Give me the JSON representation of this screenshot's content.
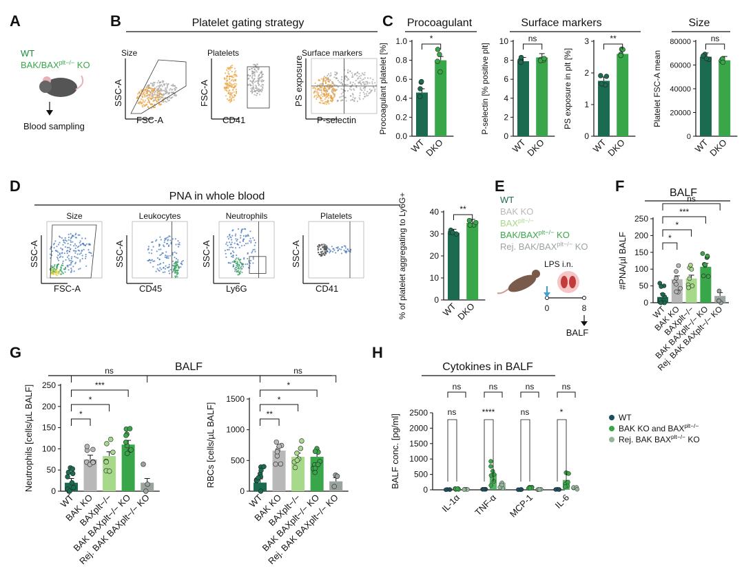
{
  "panel_letters": {
    "A": "A",
    "B": "B",
    "C": "C",
    "D": "D",
    "E": "E",
    "F": "F",
    "G": "G",
    "H": "H"
  },
  "panelA": {
    "wt": "WT",
    "ko_pre": "BAK/BAX",
    "ko_sup": "plt−/−",
    "ko_post": " KO",
    "sampling": "Blood sampling"
  },
  "panelB": {
    "title": "Platelet gating strategy",
    "plots": [
      {
        "label": "Size",
        "x": "FSC-A",
        "y": "SSC-A",
        "gate": "Size"
      },
      {
        "label": "Platelets",
        "x": "CD41",
        "y": "FSC-A",
        "gate": "CD41+"
      },
      {
        "label": "Surface markers",
        "x": "P-selectin",
        "y": "PS exposure",
        "gate": ""
      }
    ]
  },
  "panelC": {
    "titles": {
      "procoag": "Procoagulant",
      "surface": "Surface markers",
      "size": "Size"
    }
  },
  "panelD": {
    "title": "PNA in whole blood",
    "plots": [
      {
        "label": "Size",
        "x": "FSC-A",
        "y": "SSC-A"
      },
      {
        "label": "Leukocytes",
        "x": "CD45",
        "y": "SSC-A"
      },
      {
        "label": "Neutrophils",
        "x": "Ly6G",
        "y": "SSC-A"
      },
      {
        "label": "Platelets",
        "x": "CD41",
        "y": "SSC-A"
      }
    ]
  },
  "panelE": {
    "legend": [
      {
        "text": "WT",
        "sup": "",
        "post": "",
        "color": "#1a6b4f"
      },
      {
        "text": "BAK KO",
        "sup": "",
        "post": "",
        "color": "#b8b8b8"
      },
      {
        "text": "BAX",
        "sup": "plt−/−",
        "post": "",
        "color": "#a6d98a"
      },
      {
        "text": "BAK/BAX",
        "sup": "plt−/−",
        "post": " KO",
        "color": "#3aa64a"
      },
      {
        "text": "Rej. BAK/BAX",
        "sup": "plt−/−",
        "post": " KO",
        "color": "#9aa39e"
      }
    ],
    "lps": "LPS i.n.",
    "t0": "0",
    "t8": "8",
    "balf": "BALF"
  },
  "panelH": {
    "title": "Cytokines in BALF",
    "legend": [
      {
        "text": "WT",
        "sup": "",
        "post": "",
        "color": "#1d4d5c"
      },
      {
        "text": "BAK KO and BAX",
        "sup": "plt−/−",
        "post": "",
        "color": "#3aa64a"
      },
      {
        "text": "Rej. BAK BAX",
        "sup": "plt−/−",
        "post": " KO",
        "color": "#95b59b"
      }
    ]
  },
  "colors": {
    "wt": "#1a6b4f",
    "dko": "#3aa64a",
    "bak": "#b8b8b8",
    "bax": "#a6d98a",
    "rej": "#9aa39e",
    "orange": "#e8a03c",
    "gray": "#9c9c9c"
  },
  "chart_data": [
    {
      "id": "C1",
      "type": "bar",
      "title": "Procoagulant",
      "categories": [
        "WT",
        "DKO"
      ],
      "values": [
        0.46,
        0.8
      ],
      "ylabel": "Procoagulant platelet [%]",
      "ylim": [
        0,
        1.0
      ],
      "yticks": [
        "0.0",
        "0.2",
        "0.4",
        "0.6",
        "0.8",
        "1.0"
      ],
      "sig": "*"
    },
    {
      "id": "C2",
      "type": "bar",
      "categories": [
        "WT",
        "DKO"
      ],
      "values": [
        7.9,
        8.3
      ],
      "ylabel": "P-selectin [% positive plt]",
      "ylim": [
        0,
        10
      ],
      "yticks": [
        "0",
        "2",
        "4",
        "6",
        "8",
        "10"
      ],
      "sig": "ns"
    },
    {
      "id": "C3",
      "type": "bar",
      "categories": [
        "WT",
        "DKO"
      ],
      "values": [
        1.75,
        2.6
      ],
      "ylabel": "PS exposure in plt [%]",
      "ylim": [
        0,
        3
      ],
      "yticks": [
        "0",
        "1",
        "2",
        "3"
      ],
      "sig": "**"
    },
    {
      "id": "C4",
      "type": "bar",
      "title": "Size",
      "categories": [
        "WT",
        "DKO"
      ],
      "values": [
        67000,
        64000
      ],
      "ylabel": "Platelet FSC-A mean",
      "ylim": [
        0,
        80000
      ],
      "yticks": [
        "0",
        "20000",
        "40000",
        "60000",
        "80000"
      ],
      "sig": "ns"
    },
    {
      "id": "D5",
      "type": "bar",
      "categories": [
        "WT",
        "DKO"
      ],
      "values": [
        30.5,
        35
      ],
      "ylabel": "% of platelet aggregating to Ly6G+",
      "ylim": [
        0,
        40
      ],
      "yticks": [
        "0",
        "10",
        "20",
        "30",
        "40"
      ],
      "sig": "**"
    },
    {
      "id": "F",
      "type": "bar",
      "title": "BALF",
      "categories": [
        "WT",
        "BAK KO",
        "BAXplt−/−",
        "BAK BAXplt−/− KO",
        "Rej. BAK BAXplt−/− KO"
      ],
      "values": [
        17,
        70,
        72,
        107,
        20
      ],
      "ylabel": "#PNA/µl BALF",
      "ylim": [
        0,
        250
      ],
      "yticks": [
        "0",
        "50",
        "100",
        "150",
        "200",
        "250"
      ],
      "sig": [
        "*",
        "*",
        "***",
        "ns"
      ]
    },
    {
      "id": "G1",
      "type": "bar",
      "title": "BALF",
      "categories": [
        "WT",
        "BAK KO",
        "BAXplt−/−",
        "BAK BAXplt−/− KO",
        "Rej. BAK BAXplt−/− KO"
      ],
      "values": [
        20,
        75,
        83,
        110,
        20
      ],
      "ylabel": "Neutrophils [cells/µL BALF]",
      "ylim": [
        0,
        250
      ],
      "yticks": [
        "0",
        "50",
        "100",
        "150",
        "200",
        "250"
      ],
      "sig": [
        "*",
        "*",
        "***",
        "ns"
      ]
    },
    {
      "id": "G2",
      "type": "bar",
      "categories": [
        "WT",
        "BAK KO",
        "BAXplt−/−",
        "BAK BAXplt−/− KO",
        "Rej. BAK BAXplt−/− KO"
      ],
      "values": [
        140,
        660,
        560,
        560,
        160
      ],
      "ylabel": "RBCs [cells/µL BALF]",
      "ylim": [
        0,
        1500
      ],
      "yticks": [
        "0",
        "500",
        "1000",
        "1500"
      ],
      "sig": [
        "**",
        "*",
        "*",
        "ns"
      ]
    },
    {
      "id": "H",
      "type": "bar",
      "title": "Cytokines in BALF",
      "categories": [
        "IL-1α",
        "TNF-α",
        "MCP-1",
        "IL-6"
      ],
      "series": [
        {
          "name": "WT",
          "values": [
            10,
            10,
            10,
            10
          ]
        },
        {
          "name": "BAK KO and BAXplt−/−",
          "values": [
            30,
            520,
            60,
            320
          ]
        },
        {
          "name": "Rej. BAK BAXplt−/− KO",
          "values": [
            10,
            230,
            20,
            60
          ]
        }
      ],
      "ylabel": "BALF conc. [pg/ml]",
      "ylim": [
        0,
        2500
      ],
      "yticks": [
        "0",
        "500",
        "1000",
        "1500",
        "2000",
        "2500"
      ],
      "sig_top": [
        "ns",
        "ns",
        "ns",
        "ns"
      ],
      "sig_mid": [
        "ns",
        "****",
        "ns",
        "*"
      ]
    }
  ]
}
